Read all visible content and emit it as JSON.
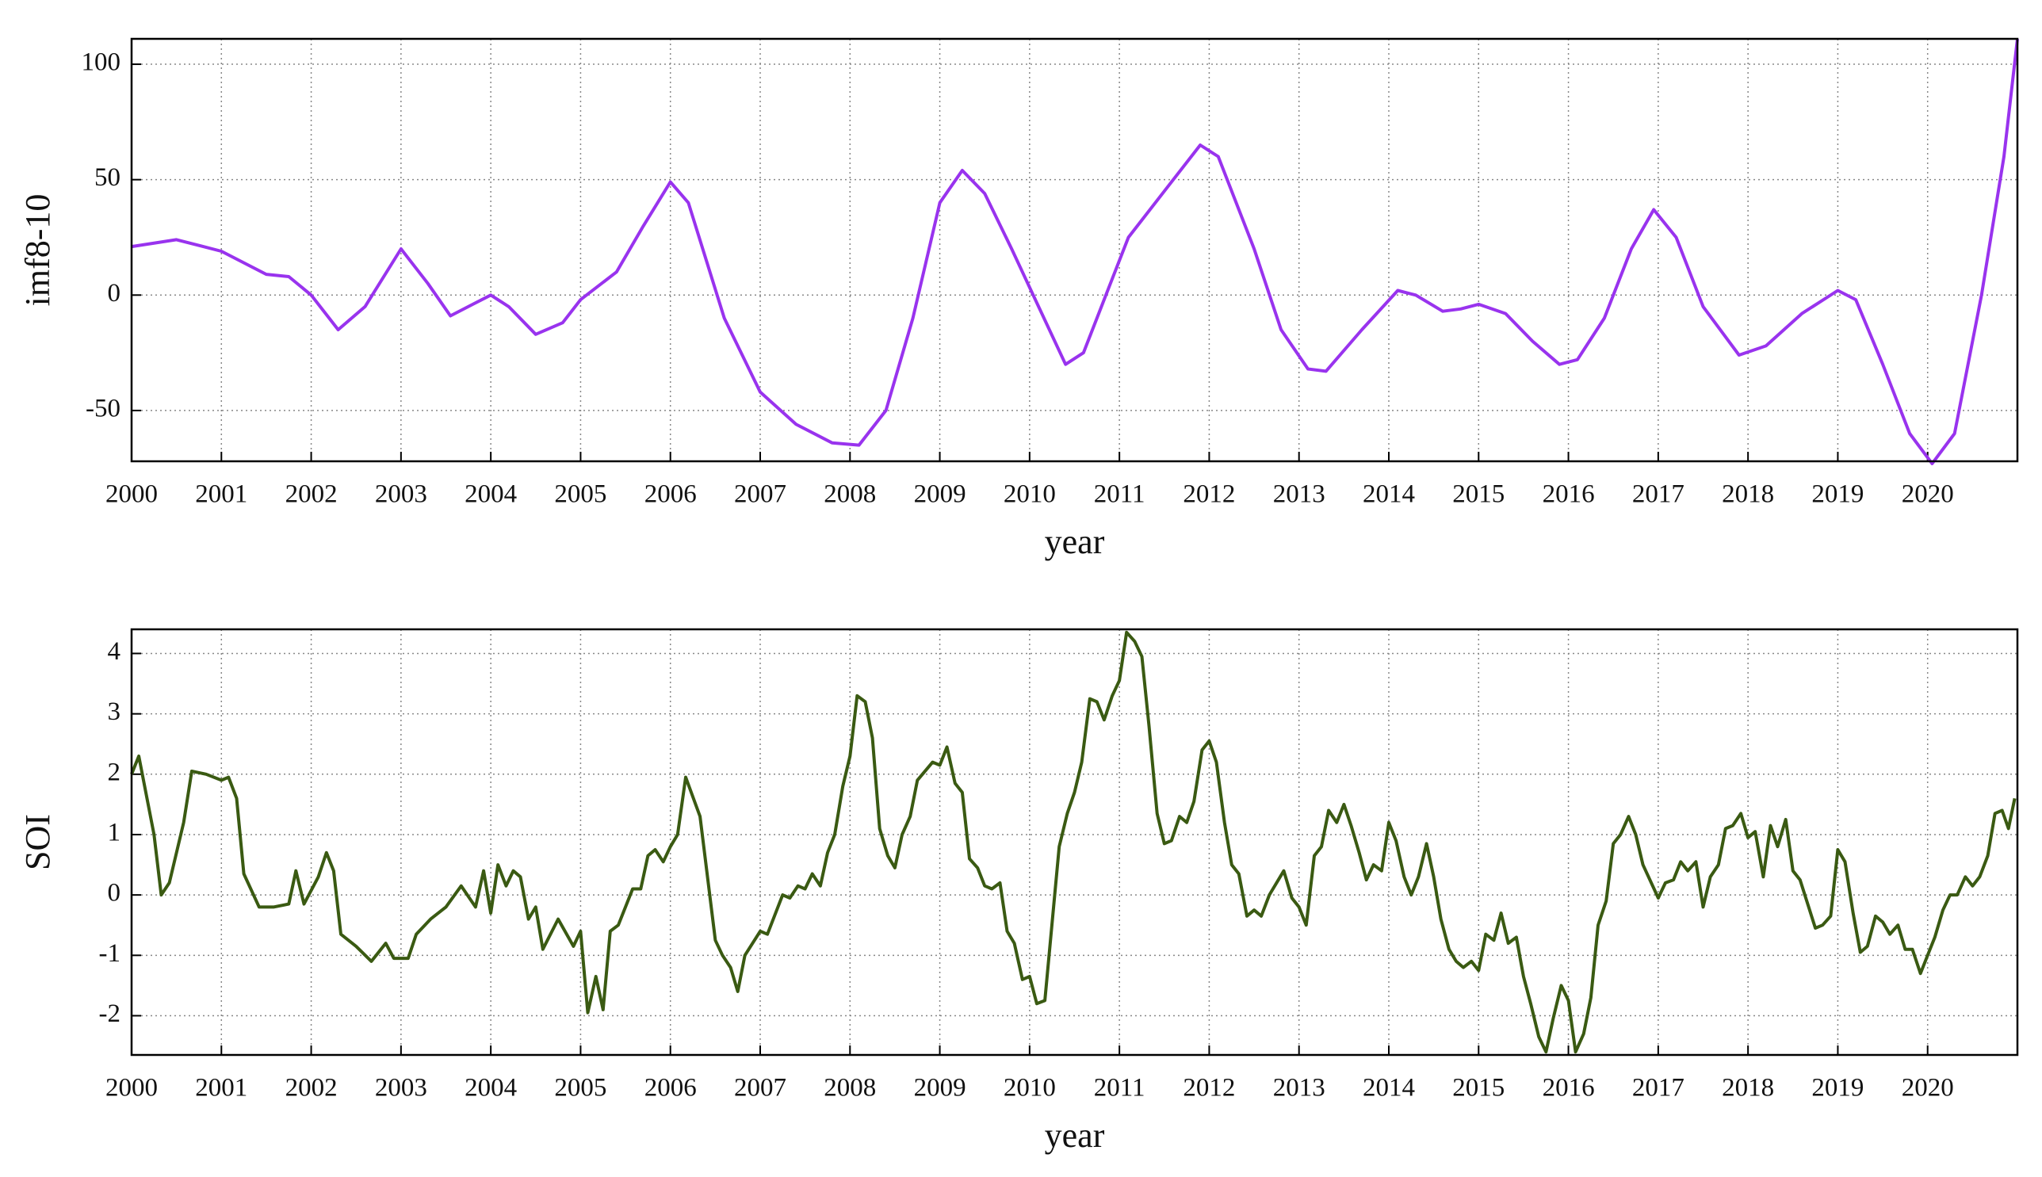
{
  "chart_data": [
    {
      "type": "line",
      "x_label": "year",
      "y_label": "imf8-10",
      "color": "#9933ee",
      "xlim": [
        2000,
        2021
      ],
      "ylim": [
        -72,
        111
      ],
      "xticks": [
        2000,
        2001,
        2002,
        2003,
        2004,
        2005,
        2006,
        2007,
        2008,
        2009,
        2010,
        2011,
        2012,
        2013,
        2014,
        2015,
        2016,
        2017,
        2018,
        2019,
        2020
      ],
      "yticks": [
        -50,
        0,
        50,
        100
      ],
      "grid": true,
      "x": [
        2000,
        2000.5,
        2001,
        2001.5,
        2001.75,
        2002,
        2002.3,
        2002.6,
        2003,
        2003.3,
        2003.55,
        2003.8,
        2004,
        2004.2,
        2004.5,
        2004.8,
        2005,
        2005.4,
        2005.7,
        2006,
        2006.2,
        2006.6,
        2007,
        2007.4,
        2007.8,
        2008.1,
        2008.4,
        2008.7,
        2009,
        2009.25,
        2009.5,
        2009.8,
        2010.1,
        2010.4,
        2010.6,
        2010.9,
        2011.1,
        2011.5,
        2011.9,
        2012.1,
        2012.5,
        2012.8,
        2013.1,
        2013.3,
        2013.7,
        2014.1,
        2014.3,
        2014.6,
        2014.8,
        2015,
        2015.3,
        2015.6,
        2015.9,
        2016.1,
        2016.4,
        2016.7,
        2016.95,
        2017.2,
        2017.5,
        2017.9,
        2018.2,
        2018.6,
        2019,
        2019.2,
        2019.5,
        2019.8,
        2020.05,
        2020.3,
        2020.6,
        2020.85,
        2021
      ],
      "values": [
        21,
        24,
        19,
        9,
        8,
        0,
        -15,
        -5,
        20,
        5,
        -9,
        -4,
        0,
        -5,
        -17,
        -12,
        -2,
        10,
        30,
        49,
        40,
        -10,
        -42,
        -56,
        -64,
        -65,
        -50,
        -10,
        40,
        54,
        44,
        20,
        -5,
        -30,
        -25,
        5,
        25,
        45,
        65,
        60,
        20,
        -15,
        -32,
        -33,
        -15,
        2,
        0,
        -7,
        -6,
        -4,
        -8,
        -20,
        -30,
        -28,
        -10,
        20,
        37,
        25,
        -5,
        -26,
        -22,
        -8,
        2,
        -2,
        -30,
        -60,
        -73,
        -60,
        0,
        60,
        111
      ]
    },
    {
      "type": "line",
      "x_label": "year",
      "y_label": "SOI",
      "color": "#3a5a12",
      "xlim": [
        2000,
        2021
      ],
      "ylim": [
        -2.65,
        4.4
      ],
      "xticks": [
        2000,
        2001,
        2002,
        2003,
        2004,
        2005,
        2006,
        2007,
        2008,
        2009,
        2010,
        2011,
        2012,
        2013,
        2014,
        2015,
        2016,
        2017,
        2018,
        2019,
        2020
      ],
      "yticks": [
        -2,
        -1,
        0,
        1,
        2,
        3,
        4
      ],
      "grid": true,
      "x": [
        2000,
        2000.08,
        2000.25,
        2000.33,
        2000.42,
        2000.58,
        2000.67,
        2000.83,
        2001,
        2001.08,
        2001.17,
        2001.25,
        2001.42,
        2001.58,
        2001.75,
        2001.83,
        2001.92,
        2002.08,
        2002.17,
        2002.25,
        2002.33,
        2002.5,
        2002.67,
        2002.83,
        2002.92,
        2003.08,
        2003.17,
        2003.33,
        2003.5,
        2003.67,
        2003.83,
        2003.92,
        2004,
        2004.08,
        2004.17,
        2004.25,
        2004.33,
        2004.42,
        2004.5,
        2004.58,
        2004.75,
        2004.92,
        2005,
        2005.08,
        2005.17,
        2005.25,
        2005.33,
        2005.42,
        2005.58,
        2005.67,
        2005.75,
        2005.83,
        2005.92,
        2006,
        2006.08,
        2006.17,
        2006.33,
        2006.5,
        2006.58,
        2006.67,
        2006.75,
        2006.83,
        2007,
        2007.08,
        2007.25,
        2007.33,
        2007.42,
        2007.5,
        2007.58,
        2007.67,
        2007.75,
        2007.83,
        2007.92,
        2008,
        2008.08,
        2008.17,
        2008.25,
        2008.33,
        2008.42,
        2008.5,
        2008.58,
        2008.67,
        2008.75,
        2008.92,
        2009,
        2009.08,
        2009.17,
        2009.25,
        2009.33,
        2009.42,
        2009.5,
        2009.58,
        2009.67,
        2009.75,
        2009.83,
        2009.92,
        2010,
        2010.08,
        2010.17,
        2010.33,
        2010.42,
        2010.5,
        2010.58,
        2010.67,
        2010.75,
        2010.83,
        2010.92,
        2011,
        2011.08,
        2011.17,
        2011.25,
        2011.33,
        2011.42,
        2011.5,
        2011.58,
        2011.67,
        2011.75,
        2011.83,
        2011.92,
        2012,
        2012.08,
        2012.17,
        2012.25,
        2012.33,
        2012.42,
        2012.5,
        2012.58,
        2012.67,
        2012.83,
        2012.92,
        2013,
        2013.08,
        2013.17,
        2013.25,
        2013.33,
        2013.42,
        2013.5,
        2013.58,
        2013.67,
        2013.75,
        2013.83,
        2013.92,
        2014,
        2014.08,
        2014.17,
        2014.25,
        2014.33,
        2014.42,
        2014.5,
        2014.58,
        2014.67,
        2014.75,
        2014.83,
        2014.92,
        2015,
        2015.08,
        2015.17,
        2015.25,
        2015.33,
        2015.42,
        2015.5,
        2015.58,
        2015.67,
        2015.75,
        2015.83,
        2015.92,
        2016,
        2016.08,
        2016.17,
        2016.25,
        2016.33,
        2016.42,
        2016.5,
        2016.58,
        2016.67,
        2016.75,
        2016.83,
        2017,
        2017.08,
        2017.17,
        2017.25,
        2017.33,
        2017.42,
        2017.5,
        2017.58,
        2017.67,
        2017.75,
        2017.83,
        2017.92,
        2018,
        2018.08,
        2018.17,
        2018.25,
        2018.33,
        2018.42,
        2018.5,
        2018.58,
        2018.75,
        2018.83,
        2018.92,
        2019,
        2019.08,
        2019.17,
        2019.25,
        2019.33,
        2019.42,
        2019.5,
        2019.58,
        2019.67,
        2019.75,
        2019.83,
        2019.92,
        2020,
        2020.08,
        2020.17,
        2020.25,
        2020.33,
        2020.42,
        2020.5,
        2020.58,
        2020.67,
        2020.75,
        2020.83,
        2020.9,
        2020.97
      ],
      "values": [
        2.0,
        2.3,
        1.0,
        0.0,
        0.2,
        1.2,
        2.05,
        2.0,
        1.9,
        1.95,
        1.6,
        0.35,
        -0.2,
        -0.2,
        -0.15,
        0.4,
        -0.15,
        0.3,
        0.7,
        0.4,
        -0.65,
        -0.85,
        -1.1,
        -0.8,
        -1.05,
        -1.05,
        -0.65,
        -0.4,
        -0.2,
        0.15,
        -0.2,
        0.4,
        -0.3,
        0.5,
        0.15,
        0.4,
        0.3,
        -0.4,
        -0.2,
        -0.9,
        -0.4,
        -0.85,
        -0.6,
        -1.95,
        -1.35,
        -1.9,
        -0.6,
        -0.5,
        0.1,
        0.1,
        0.65,
        0.75,
        0.55,
        0.8,
        1.0,
        1.95,
        1.3,
        -0.75,
        -1.0,
        -1.2,
        -1.6,
        -1.0,
        -0.6,
        -0.65,
        0.0,
        -0.05,
        0.15,
        0.1,
        0.35,
        0.15,
        0.7,
        1.0,
        1.8,
        2.3,
        3.3,
        3.2,
        2.6,
        1.1,
        0.65,
        0.45,
        1.0,
        1.3,
        1.9,
        2.2,
        2.15,
        2.45,
        1.85,
        1.7,
        0.6,
        0.45,
        0.15,
        0.1,
        0.2,
        -0.6,
        -0.8,
        -1.4,
        -1.35,
        -1.8,
        -1.75,
        0.8,
        1.35,
        1.7,
        2.2,
        3.25,
        3.2,
        2.9,
        3.3,
        3.55,
        4.35,
        4.2,
        3.95,
        2.8,
        1.35,
        0.85,
        0.9,
        1.3,
        1.2,
        1.55,
        2.4,
        2.55,
        2.2,
        1.2,
        0.5,
        0.35,
        -0.35,
        -0.25,
        -0.35,
        0.0,
        0.4,
        -0.05,
        -0.2,
        -0.5,
        0.65,
        0.8,
        1.4,
        1.2,
        1.5,
        1.15,
        0.7,
        0.25,
        0.5,
        0.4,
        1.2,
        0.9,
        0.3,
        0.0,
        0.3,
        0.85,
        0.3,
        -0.4,
        -0.9,
        -1.1,
        -1.2,
        -1.1,
        -1.25,
        -0.65,
        -0.75,
        -0.3,
        -0.8,
        -0.7,
        -1.35,
        -1.8,
        -2.35,
        -2.6,
        -2.05,
        -1.5,
        -1.75,
        -2.6,
        -2.3,
        -1.7,
        -0.5,
        -0.1,
        0.85,
        1.0,
        1.3,
        1.0,
        0.5,
        -0.05,
        0.2,
        0.25,
        0.55,
        0.4,
        0.55,
        -0.2,
        0.3,
        0.5,
        1.1,
        1.15,
        1.35,
        0.95,
        1.05,
        0.3,
        1.15,
        0.8,
        1.25,
        0.4,
        0.25,
        -0.55,
        -0.5,
        -0.35,
        0.75,
        0.55,
        -0.3,
        -0.95,
        -0.85,
        -0.35,
        -0.45,
        -0.65,
        -0.5,
        -0.9,
        -0.9,
        -1.3,
        -1.0,
        -0.7,
        -0.25,
        0.0,
        0.0,
        0.3,
        0.15,
        0.3,
        0.65,
        1.35,
        1.4,
        1.1,
        1.6
      ]
    }
  ]
}
